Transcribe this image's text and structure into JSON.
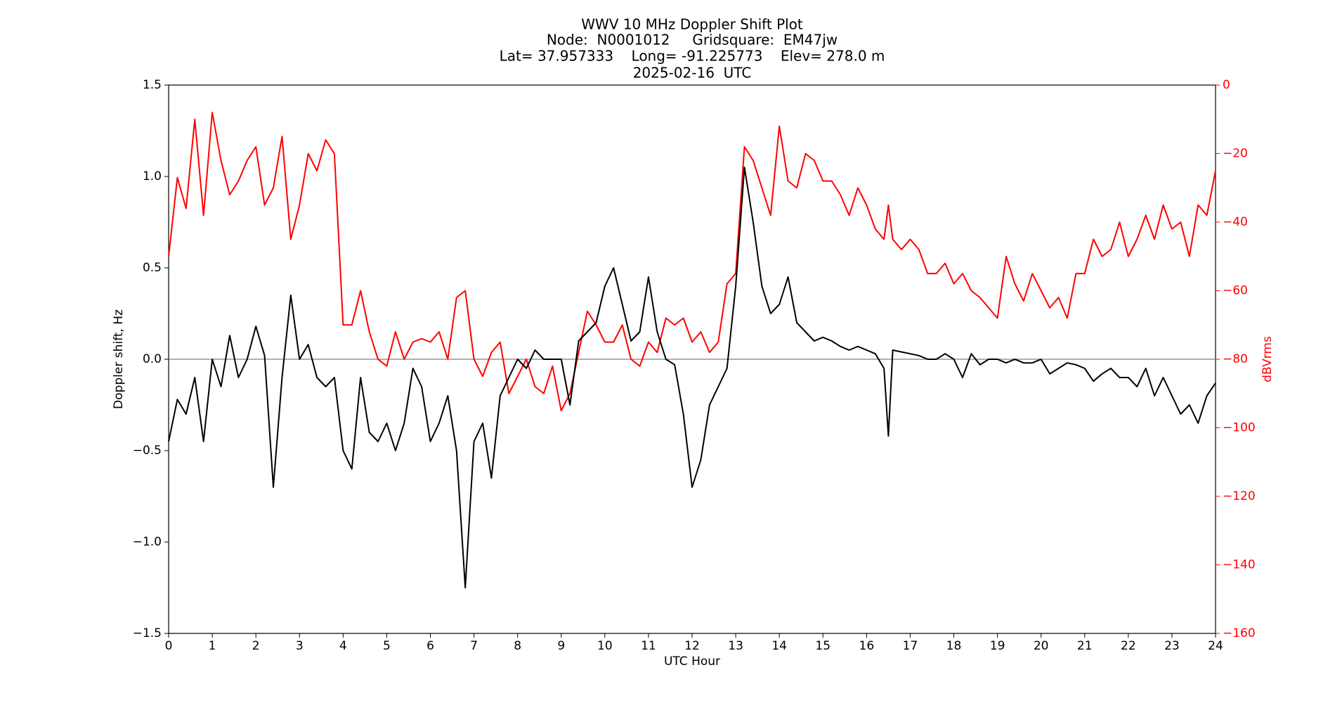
{
  "chart_data": {
    "type": "line",
    "title_lines": [
      "WWV 10 MHz Doppler Shift Plot",
      "Node:  N0001012     Gridsquare:  EM47jw",
      "Lat= 37.957333    Long= -91.225773    Elev= 278.0 m",
      "2025-02-16  UTC"
    ],
    "xlabel": "UTC Hour",
    "ylabel": "Doppler shift, Hz",
    "y2label": "dBVrms",
    "hline": 0,
    "xlim": [
      0,
      24
    ],
    "xticks": [
      0,
      1,
      2,
      3,
      4,
      5,
      6,
      7,
      8,
      9,
      10,
      11,
      12,
      13,
      14,
      15,
      16,
      17,
      18,
      19,
      20,
      21,
      22,
      23,
      24
    ],
    "ylim": [
      -1.5,
      1.5
    ],
    "yticks": [
      {
        "value": -1.5,
        "label": "−1.5"
      },
      {
        "value": -1.0,
        "label": "−1.0"
      },
      {
        "value": -0.5,
        "label": "−0.5"
      },
      {
        "value": 0,
        "label": "0.0"
      },
      {
        "value": 0.5,
        "label": "0.5"
      },
      {
        "value": 1.0,
        "label": "1.0"
      },
      {
        "value": 1.5,
        "label": "1.5"
      }
    ],
    "y2lim": [
      -160,
      0
    ],
    "y2ticks": [
      0,
      {
        "value": -20,
        "label": "−20"
      },
      {
        "value": -40,
        "label": "−40"
      },
      {
        "value": -60,
        "label": "−60"
      },
      {
        "value": -80,
        "label": "−80"
      },
      {
        "value": -100,
        "label": "−100"
      },
      {
        "value": -120,
        "label": "−120"
      },
      {
        "value": -140,
        "label": "−140"
      },
      {
        "value": -160,
        "label": "−160"
      }
    ],
    "y2color": "#ff0000",
    "x": [
      0,
      0.2,
      0.4,
      0.6,
      0.8,
      1,
      1.2,
      1.4,
      1.6,
      1.8,
      2,
      2.2,
      2.4,
      2.6,
      2.8,
      3,
      3.2,
      3.4,
      3.6,
      3.8,
      4,
      4.2,
      4.4,
      4.6,
      4.8,
      5,
      5.2,
      5.4,
      5.6,
      5.8,
      6,
      6.2,
      6.4,
      6.6,
      6.8,
      7,
      7.2,
      7.4,
      7.6,
      7.8,
      8,
      8.2,
      8.4,
      8.6,
      8.8,
      9,
      9.2,
      9.4,
      9.6,
      9.8,
      10,
      10.2,
      10.4,
      10.6,
      10.8,
      11,
      11.2,
      11.4,
      11.6,
      11.8,
      12,
      12.2,
      12.4,
      12.6,
      12.8,
      13,
      13.2,
      13.4,
      13.6,
      13.8,
      14,
      14.2,
      14.4,
      14.6,
      14.8,
      15,
      15.2,
      15.4,
      15.6,
      15.8,
      16,
      16.2,
      16.4,
      16.5,
      16.6,
      16.8,
      17,
      17.2,
      17.4,
      17.6,
      17.8,
      18,
      18.2,
      18.4,
      18.6,
      18.8,
      19,
      19.2,
      19.4,
      19.6,
      19.8,
      20,
      20.2,
      20.4,
      20.6,
      20.8,
      21,
      21.2,
      21.4,
      21.6,
      21.8,
      22,
      22.2,
      22.4,
      22.6,
      22.8,
      23,
      23.2,
      23.4,
      23.6,
      23.8,
      24
    ],
    "series": [
      {
        "color": "#000000",
        "axis": "y",
        "values": [
          -0.45,
          -0.22,
          -0.3,
          -0.1,
          -0.45,
          0,
          -0.15,
          0.13,
          -0.1,
          0,
          0.18,
          0.02,
          -0.7,
          -0.1,
          0.35,
          0,
          0.08,
          -0.1,
          -0.15,
          -0.1,
          -0.5,
          -0.6,
          -0.1,
          -0.4,
          -0.45,
          -0.35,
          -0.5,
          -0.35,
          -0.05,
          -0.15,
          -0.45,
          -0.35,
          -0.2,
          -0.5,
          -1.25,
          -0.45,
          -0.35,
          -0.65,
          -0.2,
          -0.1,
          0,
          -0.05,
          0.05,
          0,
          0,
          0,
          -0.25,
          0.1,
          0.15,
          0.2,
          0.4,
          0.5,
          0.3,
          0.1,
          0.15,
          0.45,
          0.15,
          0,
          -0.03,
          -0.3,
          -0.7,
          -0.55,
          -0.25,
          -0.15,
          -0.05,
          0.4,
          1.05,
          0.75,
          0.4,
          0.25,
          0.3,
          0.45,
          0.2,
          0.15,
          0.1,
          0.12,
          0.1,
          0.07,
          0.05,
          0.07,
          0.05,
          0.03,
          -0.05,
          -0.42,
          0.05,
          0.04,
          0.03,
          0.02,
          0,
          0,
          0.03,
          0,
          -0.1,
          0.03,
          -0.03,
          0,
          0,
          -0.02,
          0,
          -0.02,
          -0.02,
          0,
          -0.08,
          -0.05,
          -0.02,
          -0.03,
          -0.05,
          -0.12,
          -0.08,
          -0.05,
          -0.1,
          -0.1,
          -0.15,
          -0.05,
          -0.2,
          -0.1,
          -0.2,
          -0.3,
          -0.25,
          -0.35,
          -0.2,
          -0.13
        ]
      },
      {
        "color": "#ff0000",
        "axis": "y2",
        "values": [
          -50,
          -27,
          -36,
          -10,
          -38,
          -8,
          -22,
          -32,
          -28,
          -22,
          -18,
          -35,
          -30,
          -15,
          -45,
          -35,
          -20,
          -25,
          -16,
          -20,
          -70,
          -70,
          -60,
          -72,
          -80,
          -82,
          -72,
          -80,
          -75,
          -74,
          -75,
          -72,
          -80,
          -62,
          -60,
          -80,
          -85,
          -78,
          -75,
          -90,
          -85,
          -80,
          -88,
          -90,
          -82,
          -95,
          -90,
          -78,
          -66,
          -70,
          -75,
          -75,
          -70,
          -80,
          -82,
          -75,
          -78,
          -68,
          -70,
          -68,
          -75,
          -72,
          -78,
          -75,
          -58,
          -55,
          -18,
          -22,
          -30,
          -38,
          -12,
          -28,
          -30,
          -20,
          -22,
          -28,
          -28,
          -32,
          -38,
          -30,
          -35,
          -42,
          -45,
          -35,
          -45,
          -48,
          -45,
          -48,
          -55,
          -55,
          -52,
          -58,
          -55,
          -60,
          -62,
          -65,
          -68,
          -50,
          -58,
          -63,
          -55,
          -60,
          -65,
          -62,
          -68,
          -55,
          -55,
          -45,
          -50,
          -48,
          -40,
          -50,
          -45,
          -38,
          -45,
          -35,
          -42,
          -40,
          -50,
          -35,
          -38,
          -25
        ]
      }
    ]
  }
}
